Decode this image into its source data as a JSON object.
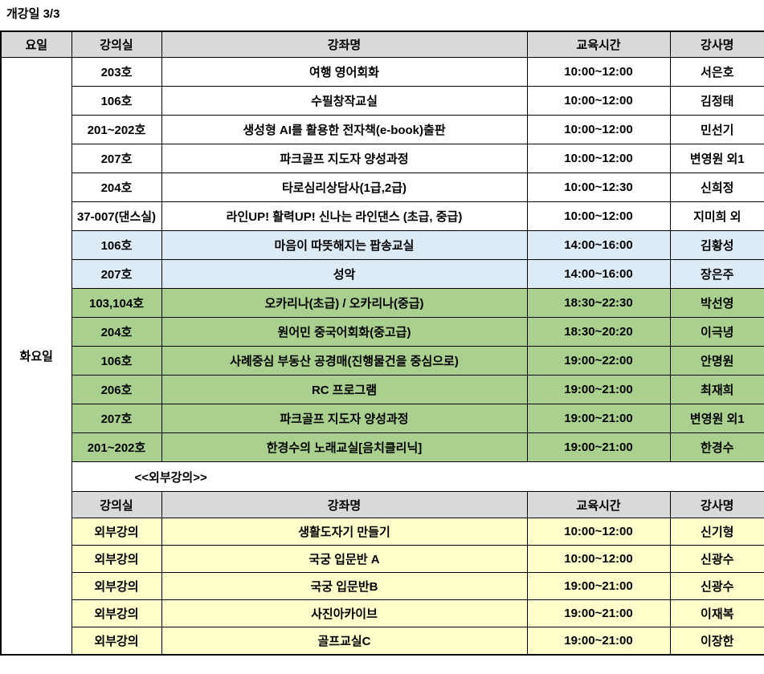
{
  "title": "개강일 3/3",
  "colors": {
    "header_gray": "#d9d9d9",
    "row_white": "#ffffff",
    "row_blue": "#ddebf7",
    "row_green": "#a9d08e",
    "row_yellow": "#ffffcc",
    "border": "#000000"
  },
  "table": {
    "headers": [
      "요일",
      "강의실",
      "강좌명",
      "교육시간",
      "강사명"
    ],
    "day_label": "화요일",
    "main_rows": [
      {
        "room": "203호",
        "course": "여행 영어회화",
        "time": "10:00~12:00",
        "instructor": "서은호",
        "bg": "white"
      },
      {
        "room": "106호",
        "course": "수필창작교실",
        "time": "10:00~12:00",
        "instructor": "김정태",
        "bg": "white"
      },
      {
        "room": "201~202호",
        "course": "생성형 AI를 활용한 전자책(e-book)출판",
        "time": "10:00~12:00",
        "instructor": "민선기",
        "bg": "white"
      },
      {
        "room": "207호",
        "course": "파크골프 지도자 양성과정",
        "time": "10:00~12:00",
        "instructor": "변영원 외1",
        "bg": "white"
      },
      {
        "room": "204호",
        "course": "타로심리상담사(1급,2급)",
        "time": "10:00~12:30",
        "instructor": "신희정",
        "bg": "white"
      },
      {
        "room": "37-007(댄스실)",
        "course": "라인UP! 활력UP! 신나는 라인댄스 (초급, 중급)",
        "time": "10:00~12:00",
        "instructor": "지미희 외",
        "bg": "white"
      },
      {
        "room": "106호",
        "course": "마음이 따뜻해지는 팝송교실",
        "time": "14:00~16:00",
        "instructor": "김황성",
        "bg": "blue"
      },
      {
        "room": "207호",
        "course": "성악",
        "time": "14:00~16:00",
        "instructor": "장은주",
        "bg": "blue"
      },
      {
        "room": "103,104호",
        "course": "오카리나(초급) / 오카리나(중급)",
        "time": "18:30~22:30",
        "instructor": "박선영",
        "bg": "green"
      },
      {
        "room": "204호",
        "course": "원어민 중국어회화(중고급)",
        "time": "18:30~20:20",
        "instructor": "이극녕",
        "bg": "green"
      },
      {
        "room": "106호",
        "course": "사례중심 부동산 공경매(진행물건을 중심으로)",
        "time": "19:00~22:00",
        "instructor": "안명원",
        "bg": "green"
      },
      {
        "room": "206호",
        "course": "RC 프로그램",
        "time": "19:00~21:00",
        "instructor": "최재희",
        "bg": "green"
      },
      {
        "room": "207호",
        "course": "파크골프 지도자 양성과정",
        "time": "19:00~21:00",
        "instructor": "변영원 외1",
        "bg": "green"
      },
      {
        "room": "201~202호",
        "course": "한경수의 노래교실[음치클리닉]",
        "time": "19:00~21:00",
        "instructor": "한경수",
        "bg": "green"
      }
    ],
    "external_section": {
      "label": "<<외부강의>>",
      "headers": [
        "강의실",
        "강좌명",
        "교육시간",
        "강사명"
      ],
      "rows": [
        {
          "room": "외부강의",
          "course": "생활도자기 만들기",
          "time": "10:00~12:00",
          "instructor": "신기형"
        },
        {
          "room": "외부강의",
          "course": "국궁 입문반 A",
          "time": "10:00~12:00",
          "instructor": "신광수"
        },
        {
          "room": "외부강의",
          "course": "국궁 입문반B",
          "time": "19:00~21:00",
          "instructor": "신광수"
        },
        {
          "room": "외부강의",
          "course": "사진아카이브",
          "time": "19:00~21:00",
          "instructor": "이재복"
        },
        {
          "room": "외부강의",
          "course": "골프교실C",
          "time": "19:00~21:00",
          "instructor": "이장한"
        }
      ]
    }
  }
}
